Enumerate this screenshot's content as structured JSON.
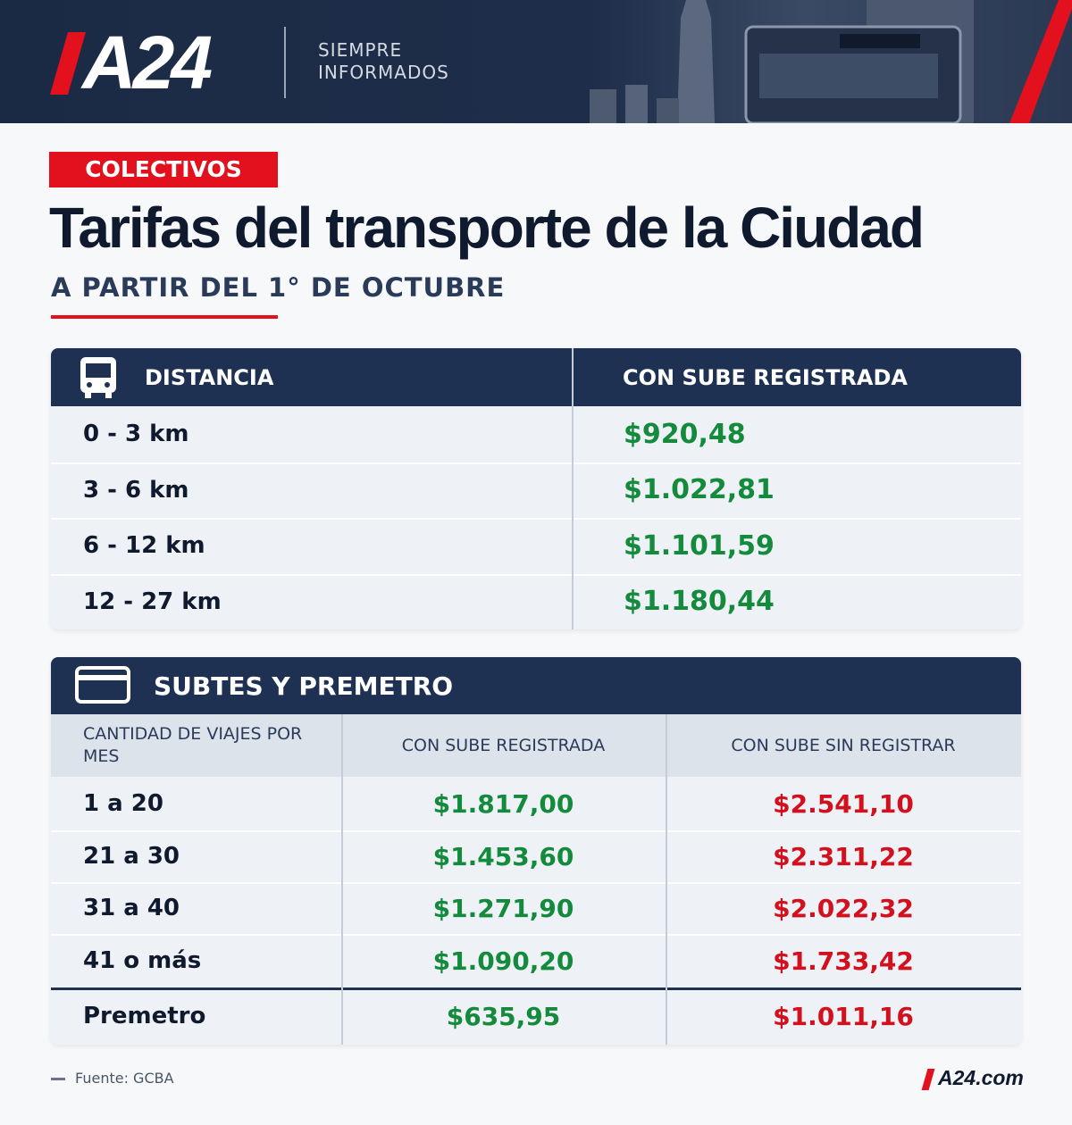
{
  "header": {
    "logo": "A24",
    "tagline": [
      "SIEMPRE",
      "INFORMADOS"
    ]
  },
  "badge": "COLECTIVOS",
  "title": "Tarifas del transporte de la Ciudad",
  "subtitle": "A PARTIR DEL 1° DE OCTUBRE",
  "colectivos": {
    "headers": [
      "DISTANCIA",
      "CON SUBE REGISTRADA"
    ],
    "rows": [
      [
        "0 - 3 km",
        "$920,48"
      ],
      [
        "3 - 6 km",
        "$1.022,81"
      ],
      [
        "6 - 12 km",
        "$1.101,59"
      ],
      [
        "12 - 27 km",
        "$1.180,44"
      ]
    ]
  },
  "subtes": {
    "title": "SUBTES Y PREMETRO",
    "headers": [
      "CANTIDAD DE VIAJES POR MES",
      "CON SUBE REGISTRADA",
      "CON SUBE SIN REGISTRAR"
    ],
    "rows": [
      [
        "1 a 20",
        "$1.817,00",
        "$2.541,10"
      ],
      [
        "21 a 30",
        "$1.453,60",
        "$2.311,22"
      ],
      [
        "31 a 40",
        "$1.271,90",
        "$2.022,32"
      ],
      [
        "41 o más",
        "$1.090,20",
        "$1.733,42"
      ],
      [
        "Premetro",
        "$635,95",
        "$1.011,16"
      ]
    ]
  },
  "footer": {
    "source": "Fuente: GCBA",
    "brand": "A24.com"
  }
}
